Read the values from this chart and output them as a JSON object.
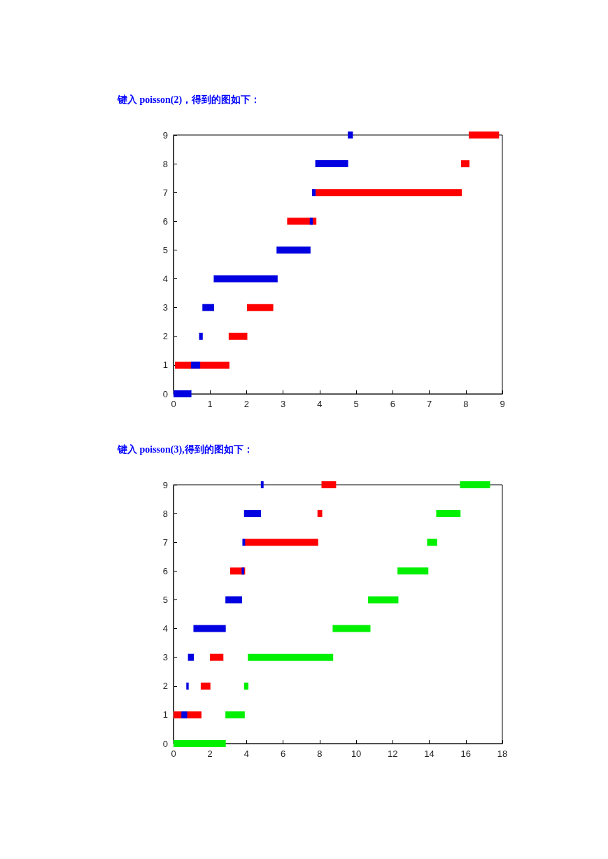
{
  "chart_data": [
    {
      "type": "bar",
      "title": "键入 poisson(2)，得到的图如下：",
      "orientation": "horizontal",
      "categories": [
        "9",
        "8",
        "7",
        "6",
        "5",
        "4",
        "3",
        "2",
        "1",
        "0"
      ],
      "xlim": [
        0,
        9
      ],
      "xticks": [
        0,
        1,
        2,
        3,
        4,
        5,
        6,
        7,
        8,
        9
      ],
      "grid": false,
      "series": [
        {
          "color": "#ff0000",
          "base": [
            8.08,
            7.87,
            3.89,
            3.11,
            null,
            null,
            2.01,
            1.51,
            0.04,
            null
          ],
          "values": [
            0.83,
            0.23,
            4.0,
            0.8,
            null,
            null,
            0.72,
            0.51,
            1.49,
            null
          ]
        },
        {
          "color": "#0000e0",
          "base": [
            4.77,
            3.88,
            3.79,
            3.73,
            2.82,
            1.1,
            0.79,
            0.7,
            0.48,
            0
          ],
          "values": [
            0.14,
            0.9,
            0.1,
            0.08,
            0.93,
            1.75,
            0.32,
            0.1,
            0.25,
            0.49
          ]
        }
      ]
    },
    {
      "type": "bar",
      "title": "键入 poisson(3),得到的图如下：",
      "orientation": "horizontal",
      "categories": [
        "9",
        "8",
        "7",
        "6",
        "5",
        "4",
        "3",
        "2",
        "1",
        "0"
      ],
      "xlim": [
        0,
        18
      ],
      "xticks": [
        0,
        2,
        4,
        6,
        8,
        10,
        12,
        14,
        16,
        18
      ],
      "grid": false,
      "series": [
        {
          "color": "#ff0000",
          "base": [
            8.1,
            7.88,
            3.9,
            3.1,
            null,
            null,
            1.99,
            1.49,
            0,
            null
          ],
          "values": [
            0.8,
            0.26,
            4.02,
            0.82,
            null,
            null,
            0.74,
            0.53,
            1.53,
            null
          ]
        },
        {
          "color": "#00f000",
          "base": [
            15.68,
            14.38,
            13.88,
            12.26,
            10.65,
            8.71,
            4.07,
            3.86,
            2.84,
            0
          ],
          "values": [
            1.65,
            1.33,
            0.55,
            1.69,
            1.66,
            2.07,
            4.67,
            0.24,
            1.06,
            2.86
          ]
        },
        {
          "color": "#0000e0",
          "base": [
            4.78,
            3.86,
            3.77,
            3.73,
            2.84,
            1.09,
            0.79,
            0.7,
            0.43,
            null
          ],
          "values": [
            0.15,
            0.93,
            0.15,
            0.14,
            0.91,
            1.77,
            0.32,
            0.13,
            0.32,
            null
          ]
        }
      ]
    }
  ]
}
